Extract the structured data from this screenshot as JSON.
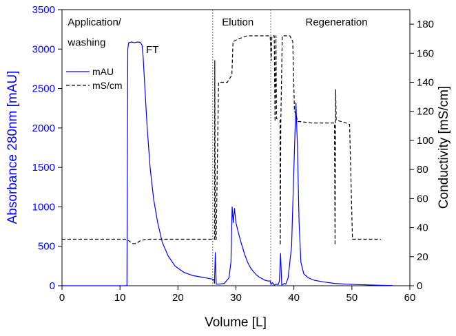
{
  "chart_data": {
    "type": "line",
    "xlabel": "Volume [L]",
    "ylabel_left": "Absorbance 280nm [mAU]",
    "ylabel_right": "Conductivity [mS/cm]",
    "xlim": [
      0,
      60
    ],
    "ylim_left": [
      0,
      3500
    ],
    "ylim_right": [
      0,
      190
    ],
    "x_ticks": [
      "0",
      "10",
      "20",
      "30",
      "40",
      "50",
      "60"
    ],
    "y_left_ticks": [
      "0",
      "500",
      "1000",
      "1500",
      "2000",
      "2500",
      "3000",
      "3500"
    ],
    "y_right_ticks": [
      "0",
      "20",
      "40",
      "60",
      "80",
      "100",
      "120",
      "140",
      "160",
      "180"
    ],
    "grid": false,
    "legend_position": "upper-left",
    "phase_dividers_x": [
      26,
      36
    ],
    "annotations": [
      {
        "text": "Application/",
        "x": 1,
        "y_left": 3300
      },
      {
        "text": "washing",
        "x": 1,
        "y_left": 3040
      },
      {
        "text": "FT",
        "x": 14.5,
        "y_left": 2950
      },
      {
        "text": "Elution",
        "x": 27.6,
        "y_left": 3300
      },
      {
        "text": "Regeneration",
        "x": 42,
        "y_left": 3300
      }
    ],
    "series": [
      {
        "name": "mAU",
        "axis": "left",
        "color": "#0000ff",
        "style": "solid",
        "points": [
          [
            0,
            0
          ],
          [
            11,
            0
          ],
          [
            11.2,
            5
          ],
          [
            11.35,
            3000
          ],
          [
            11.5,
            3080
          ],
          [
            12,
            3090
          ],
          [
            12.5,
            3080
          ],
          [
            13,
            3090
          ],
          [
            13.5,
            3085
          ],
          [
            13.8,
            3050
          ],
          [
            14,
            2900
          ],
          [
            14.3,
            2500
          ],
          [
            14.7,
            2000
          ],
          [
            15.2,
            1500
          ],
          [
            15.8,
            1100
          ],
          [
            16.5,
            800
          ],
          [
            17.3,
            550
          ],
          [
            18.3,
            380
          ],
          [
            19.5,
            250
          ],
          [
            21,
            170
          ],
          [
            22.5,
            130
          ],
          [
            24,
            110
          ],
          [
            25.5,
            90
          ],
          [
            26.2,
            80
          ],
          [
            26.3,
            30
          ],
          [
            26.45,
            420
          ],
          [
            26.6,
            20
          ],
          [
            27,
            20
          ],
          [
            28,
            30
          ],
          [
            28.8,
            100
          ],
          [
            29.15,
            300
          ],
          [
            29.35,
            1000
          ],
          [
            29.55,
            800
          ],
          [
            29.75,
            980
          ],
          [
            30,
            800
          ],
          [
            30.5,
            650
          ],
          [
            31,
            520
          ],
          [
            31.5,
            400
          ],
          [
            32,
            300
          ],
          [
            32.5,
            230
          ],
          [
            33,
            180
          ],
          [
            33.5,
            140
          ],
          [
            34,
            110
          ],
          [
            34.5,
            90
          ],
          [
            35,
            70
          ],
          [
            35.5,
            60
          ],
          [
            35.9,
            60
          ],
          [
            36.05,
            15
          ],
          [
            36.3,
            40
          ],
          [
            36.6,
            10
          ],
          [
            37,
            20
          ],
          [
            37.3,
            15
          ],
          [
            37.5,
            60
          ],
          [
            37.7,
            410
          ],
          [
            37.9,
            10
          ],
          [
            38.4,
            30
          ],
          [
            38.6,
            20
          ],
          [
            39,
            100
          ],
          [
            39.6,
            500
          ],
          [
            40,
            1500
          ],
          [
            40.35,
            2320
          ],
          [
            40.6,
            1800
          ],
          [
            40.9,
            800
          ],
          [
            41.2,
            300
          ],
          [
            41.7,
            150
          ],
          [
            42.5,
            100
          ],
          [
            43.5,
            70
          ],
          [
            45,
            50
          ],
          [
            47,
            30
          ],
          [
            49,
            20
          ],
          [
            51,
            15
          ],
          [
            53,
            10
          ],
          [
            55,
            5
          ],
          [
            57,
            3
          ]
        ]
      },
      {
        "name": "mS/cm",
        "axis": "right",
        "color": "#000000",
        "style": "dashed",
        "points": [
          [
            0,
            32
          ],
          [
            11,
            32
          ],
          [
            11.5,
            31
          ],
          [
            12.2,
            29
          ],
          [
            12.8,
            29
          ],
          [
            13.5,
            31
          ],
          [
            14.5,
            32
          ],
          [
            26.2,
            32
          ],
          [
            26.3,
            32
          ],
          [
            26.35,
            155
          ],
          [
            26.45,
            32
          ],
          [
            26.6,
            32
          ],
          [
            27,
            140
          ],
          [
            28.5,
            140
          ],
          [
            29.3,
            145
          ],
          [
            29.5,
            168
          ],
          [
            30.5,
            170
          ],
          [
            32,
            172
          ],
          [
            35.6,
            172
          ],
          [
            35.9,
            172
          ],
          [
            36.1,
            155
          ],
          [
            36.2,
            172
          ],
          [
            36.6,
            172
          ],
          [
            36.75,
            113
          ],
          [
            36.9,
            172
          ],
          [
            37,
            115
          ],
          [
            37.6,
            114
          ],
          [
            37.65,
            28
          ],
          [
            37.75,
            114
          ],
          [
            38,
            172
          ],
          [
            38.5,
            172
          ],
          [
            39.3,
            172
          ],
          [
            39.8,
            168
          ],
          [
            40.1,
            120
          ],
          [
            40.4,
            118
          ],
          [
            40.6,
            113
          ],
          [
            41,
            113
          ],
          [
            43,
            112
          ],
          [
            46,
            112
          ],
          [
            47,
            112
          ],
          [
            47.1,
            28
          ],
          [
            47.2,
            135
          ],
          [
            47.3,
            114
          ],
          [
            49,
            112
          ],
          [
            49.6,
            111
          ],
          [
            50.1,
            32
          ],
          [
            55,
            32
          ]
        ]
      }
    ]
  }
}
